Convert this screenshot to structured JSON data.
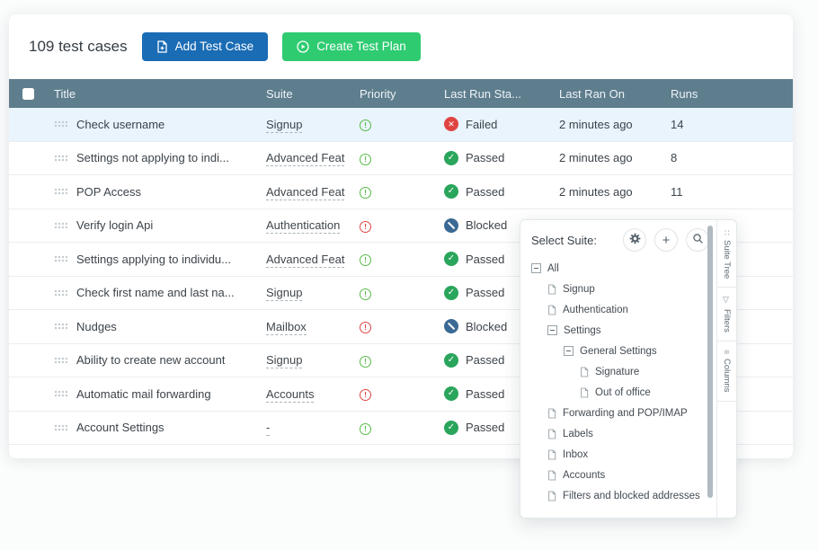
{
  "header": {
    "count_label": "109 test cases",
    "add_button": "Add Test Case",
    "create_button": "Create Test Plan"
  },
  "table": {
    "columns": [
      "Title",
      "Suite",
      "Priority",
      "Last Run Sta...",
      "Last Ran On",
      "Runs"
    ],
    "rows": [
      {
        "title": "Check username",
        "suite": "Signup",
        "priority": "normal",
        "status": "Failed",
        "last_ran": "2 minutes ago",
        "runs": "14",
        "selected": true
      },
      {
        "title": "Settings not applying to indi...",
        "suite": "Advanced Feat",
        "priority": "normal",
        "status": "Passed",
        "last_ran": "2 minutes ago",
        "runs": "8",
        "selected": false
      },
      {
        "title": "POP Access",
        "suite": "Advanced Feat",
        "priority": "normal",
        "status": "Passed",
        "last_ran": "2 minutes ago",
        "runs": "11",
        "selected": false
      },
      {
        "title": "Verify login Api",
        "suite": "Authentication",
        "priority": "high",
        "status": "Blocked",
        "last_ran": "",
        "runs": "",
        "selected": false
      },
      {
        "title": "Settings applying to individu...",
        "suite": "Advanced Feat",
        "priority": "normal",
        "status": "Passed",
        "last_ran": "",
        "runs": "",
        "selected": false
      },
      {
        "title": "Check first name and last na...",
        "suite": "Signup",
        "priority": "normal",
        "status": "Passed",
        "last_ran": "",
        "runs": "",
        "selected": false
      },
      {
        "title": "Nudges",
        "suite": "Mailbox",
        "priority": "high",
        "status": "Blocked",
        "last_ran": "",
        "runs": "",
        "selected": false
      },
      {
        "title": "Ability to create new account",
        "suite": "Signup",
        "priority": "normal",
        "status": "Passed",
        "last_ran": "",
        "runs": "",
        "selected": false
      },
      {
        "title": "Automatic mail forwarding",
        "suite": "Accounts",
        "priority": "high",
        "status": "Passed",
        "last_ran": "",
        "runs": "",
        "selected": false
      },
      {
        "title": "Account Settings",
        "suite": "-",
        "priority": "normal",
        "status": "Passed",
        "last_ran": "",
        "runs": "",
        "selected": false
      }
    ]
  },
  "popup": {
    "title": "Select Suite:",
    "tree": [
      {
        "label": "All",
        "type": "branch",
        "level": 0
      },
      {
        "label": "Signup",
        "type": "leaf",
        "level": 1
      },
      {
        "label": "Authentication",
        "type": "leaf",
        "level": 1
      },
      {
        "label": "Settings",
        "type": "branch",
        "level": 1
      },
      {
        "label": "General Settings",
        "type": "branch",
        "level": 2
      },
      {
        "label": "Signature",
        "type": "leaf",
        "level": 3
      },
      {
        "label": "Out of office",
        "type": "leaf",
        "level": 3
      },
      {
        "label": "Forwarding and POP/IMAP",
        "type": "leaf",
        "level": 1
      },
      {
        "label": "Labels",
        "type": "leaf",
        "level": 1
      },
      {
        "label": "Inbox",
        "type": "leaf",
        "level": 1
      },
      {
        "label": "Accounts",
        "type": "leaf",
        "level": 1
      },
      {
        "label": "Filters and blocked addresses",
        "type": "leaf",
        "level": 1
      }
    ],
    "side_tabs": [
      {
        "label": "Suite Tree",
        "icon": "tree-icon"
      },
      {
        "label": "Filters",
        "icon": "filter-icon"
      },
      {
        "label": "Columns",
        "icon": "columns-icon"
      }
    ]
  },
  "colors": {
    "table_header_bg": "#5e7d8d",
    "add_button_bg": "#1a6cb5",
    "create_button_bg": "#2ecb71",
    "failed": "#df4440",
    "passed": "#2aa55c",
    "blocked": "#3a6a94",
    "priority_normal": "#57bb47",
    "priority_high": "#e0453f",
    "selected_row_bg": "#e9f4fc"
  }
}
